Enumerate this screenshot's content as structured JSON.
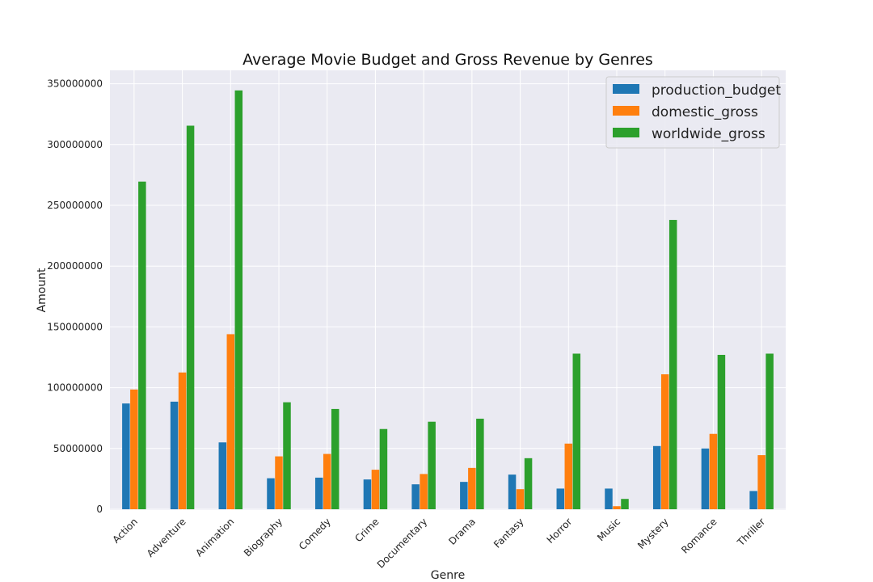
{
  "chart_data": {
    "type": "bar",
    "title": "Average Movie Budget and Gross Revenue by Genres",
    "xlabel": "Genre",
    "ylabel": "Amount",
    "ylim": [
      0,
      360000000
    ],
    "yticks": [
      0,
      50000000,
      100000000,
      150000000,
      200000000,
      250000000,
      300000000,
      350000000
    ],
    "ytick_labels": [
      "0",
      "50000000",
      "100000000",
      "150000000",
      "200000000",
      "250000000",
      "300000000",
      "350000000"
    ],
    "grid": true,
    "legend_position": "top-right",
    "categories": [
      "Action",
      "Adventure",
      "Animation",
      "Biography",
      "Comedy",
      "Crime",
      "Documentary",
      "Drama",
      "Fantasy",
      "Horror",
      "Music",
      "Mystery",
      "Romance",
      "Thriller"
    ],
    "series": [
      {
        "name": "production_budget",
        "color": "#1f77b4",
        "values": [
          87000000,
          88500000,
          55000000,
          25500000,
          26000000,
          24500000,
          20500000,
          22500000,
          28500000,
          17000000,
          17000000,
          52000000,
          50000000,
          15000000
        ]
      },
      {
        "name": "domestic_gross",
        "color": "#ff7f0e",
        "values": [
          98500000,
          112500000,
          144000000,
          43500000,
          45500000,
          32500000,
          29000000,
          34000000,
          16500000,
          54000000,
          2500000,
          111000000,
          62000000,
          44500000
        ]
      },
      {
        "name": "worldwide_gross",
        "color": "#2ca02c",
        "values": [
          269500000,
          315500000,
          344500000,
          88000000,
          82500000,
          66000000,
          72000000,
          74500000,
          42000000,
          128000000,
          8500000,
          238000000,
          127000000,
          128000000
        ]
      }
    ]
  }
}
